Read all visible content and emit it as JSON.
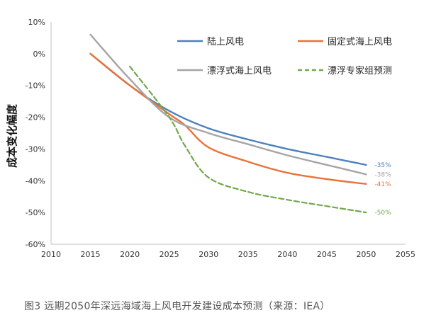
{
  "caption": "图3 远期2050年深远海域海上风电开发建设成本预测（来源：IEA）",
  "chart_data": {
    "type": "line",
    "title": "",
    "xlabel": "",
    "ylabel": "成本变化幅度",
    "xlim": [
      2010,
      2055
    ],
    "ylim": [
      -60,
      10
    ],
    "x_ticks": [
      "2010",
      "2015",
      "2020",
      "2025",
      "2030",
      "2035",
      "2040",
      "2045",
      "2050",
      "2055"
    ],
    "y_ticks": [
      "10%",
      "0%",
      "-10%",
      "-20%",
      "-30%",
      "-40%",
      "-50%",
      "-60%"
    ],
    "grid": false,
    "legend": "top-right",
    "series": [
      {
        "name": "陆上风电",
        "color": "#4e81bd",
        "dash": "solid",
        "end_label": "-35%",
        "x": [
          2015,
          2020,
          2025,
          2030,
          2035,
          2040,
          2045,
          2050
        ],
        "y": [
          0,
          -10,
          -18,
          -23.5,
          -27,
          -30,
          -32.5,
          -35
        ]
      },
      {
        "name": "固定式海上风电",
        "color": "#e9733a",
        "dash": "solid",
        "end_label": "-41%",
        "x": [
          2015,
          2020,
          2025,
          2027,
          2030,
          2035,
          2040,
          2045,
          2050
        ],
        "y": [
          0,
          -10,
          -19,
          -22.5,
          -29.5,
          -34,
          -37.5,
          -39.5,
          -41
        ]
      },
      {
        "name": "漂浮式海上风电",
        "color": "#a5a5a5",
        "dash": "solid",
        "end_label": "-38%",
        "x": [
          2015,
          2020,
          2025,
          2030,
          2035,
          2040,
          2045,
          2050
        ],
        "y": [
          6,
          -8,
          -20,
          -25,
          -28.5,
          -32,
          -35,
          -38
        ]
      },
      {
        "name": "漂浮专家组预测",
        "color": "#72a84c",
        "dash": "dashed",
        "end_label": "-50%",
        "x": [
          2020,
          2025,
          2027,
          2030,
          2035,
          2040,
          2045,
          2050
        ],
        "y": [
          -4,
          -20,
          -29,
          -39,
          -43.5,
          -46,
          -48,
          -50
        ]
      }
    ]
  }
}
